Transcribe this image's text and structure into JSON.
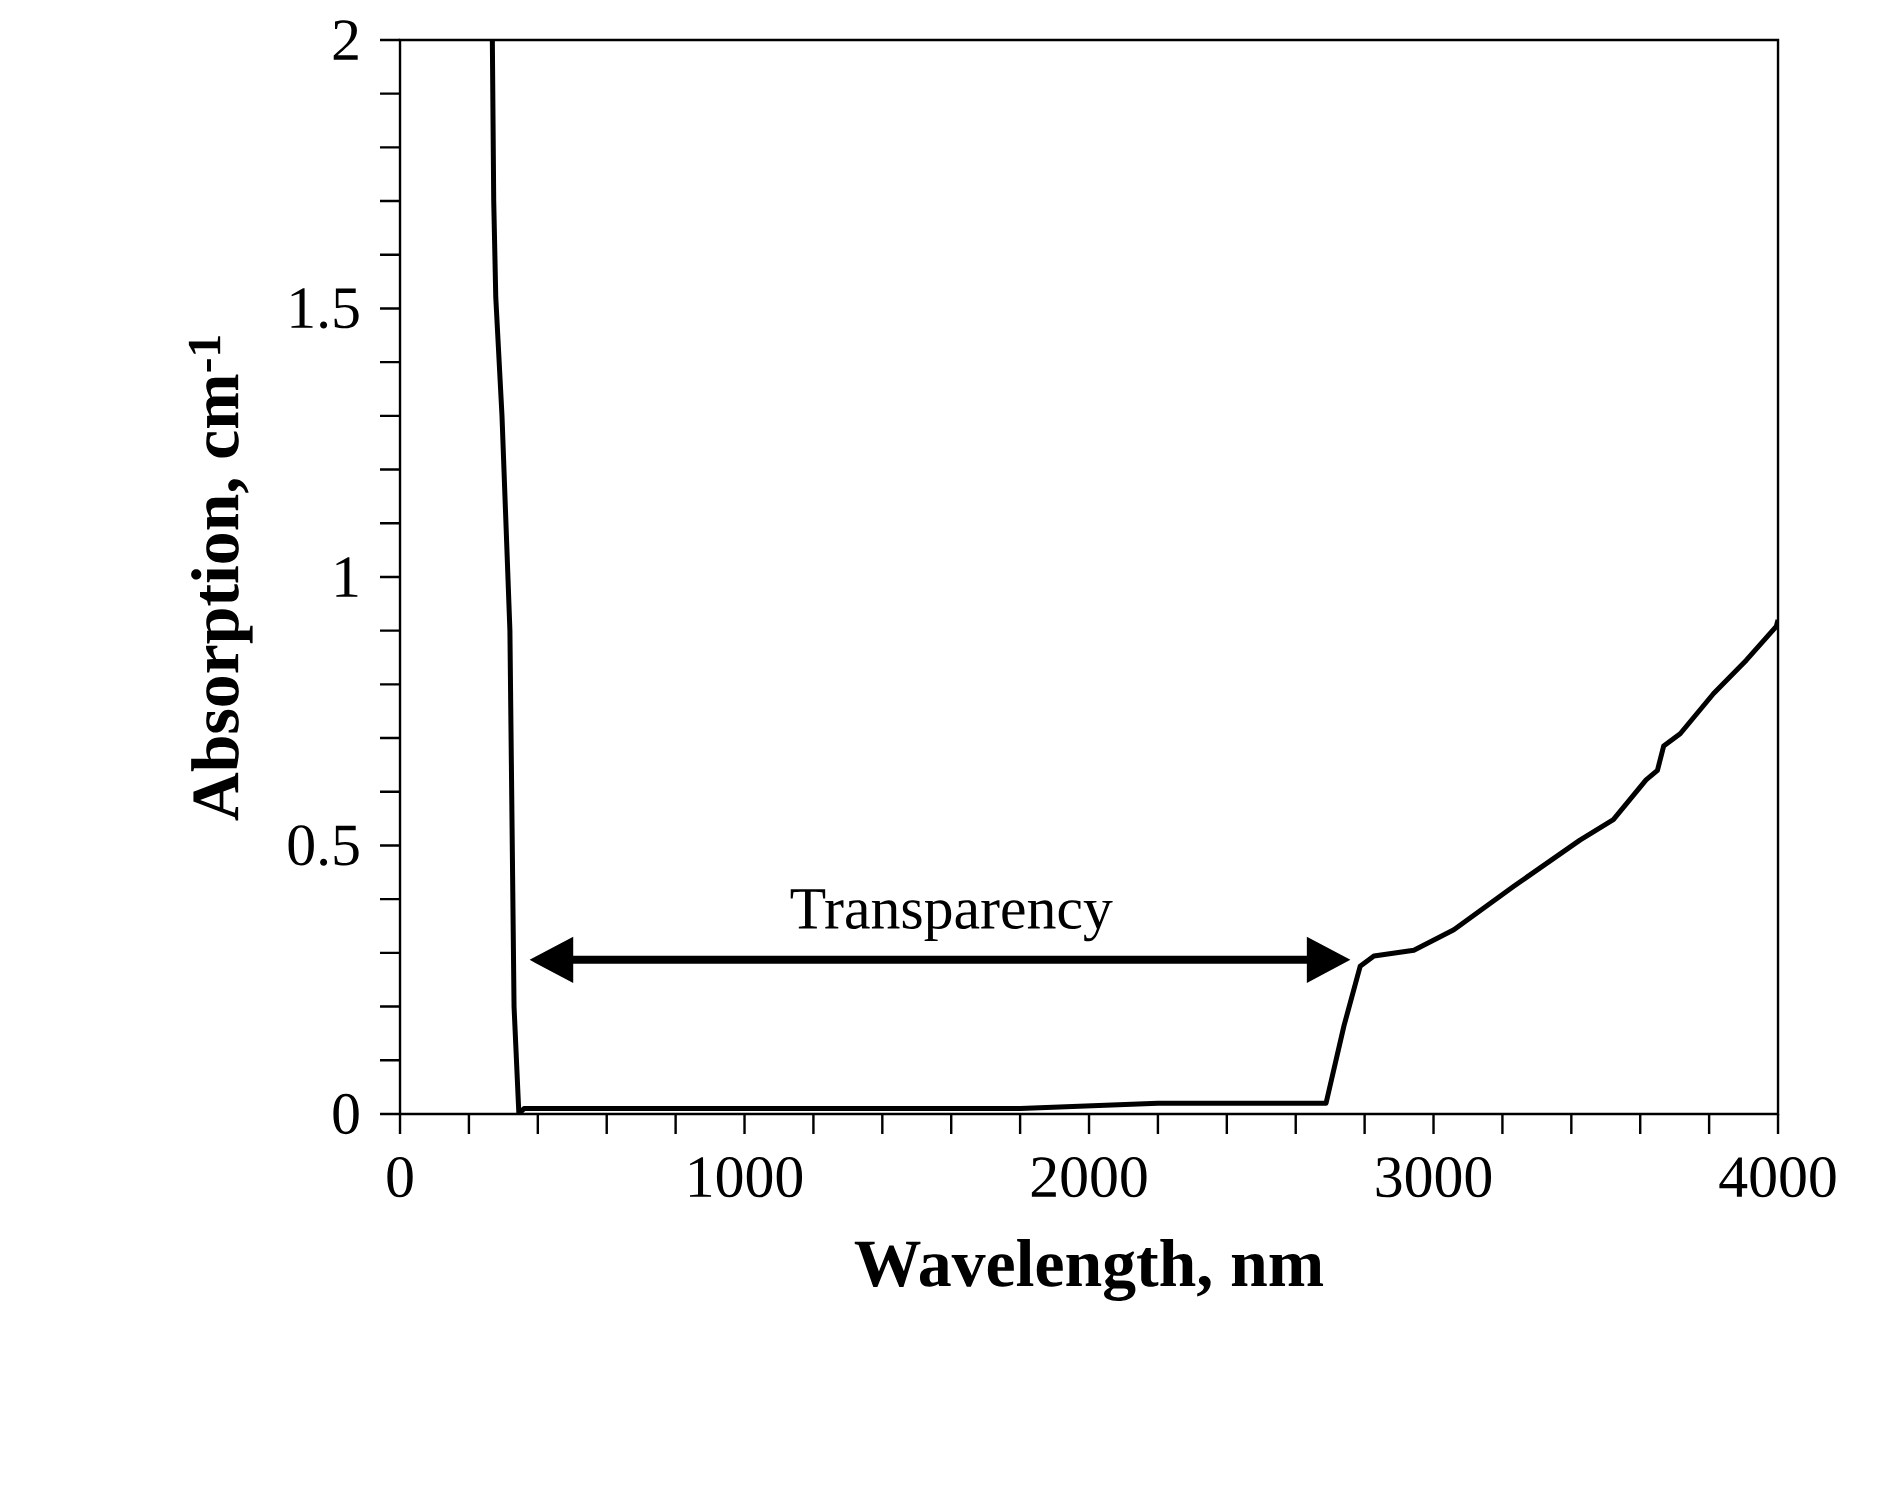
{
  "chart_data": {
    "type": "line",
    "xlabel": "Wavelength, nm",
    "ylabel": "Absorption, cm$^{-1}$",
    "annotations": [
      "Transparency"
    ],
    "series": [
      {
        "color": "#000000",
        "x": [
          268,
          272,
          278,
          296,
          319,
          331,
          345,
          360,
          600,
          1000,
          1400,
          1800,
          2200,
          2500,
          2650,
          2688,
          2740,
          2787,
          2827,
          2943,
          3059,
          3233,
          3425,
          3522,
          3617,
          3650,
          3668,
          3716,
          3813,
          3908,
          3995,
          4000
        ],
        "values": [
          2.0,
          1.7,
          1.52,
          1.3,
          0.9,
          0.2,
          0.0,
          0.01,
          0.01,
          0.01,
          0.01,
          0.01,
          0.02,
          0.02,
          0.02,
          0.02,
          0.164,
          0.275,
          0.294,
          0.305,
          0.343,
          0.424,
          0.51,
          0.548,
          0.622,
          0.64,
          0.685,
          0.708,
          0.783,
          0.845,
          0.908,
          0.92
        ]
      }
    ],
    "xlim": [
      0,
      4000
    ],
    "xticks": [
      0,
      {
        "value": 200,
        "label": null
      },
      {
        "value": 400,
        "label": null
      },
      {
        "value": 600,
        "label": null
      },
      {
        "value": 800,
        "label": null
      },
      1000,
      {
        "value": 1200,
        "label": null
      },
      {
        "value": 1400,
        "label": null
      },
      {
        "value": 1600,
        "label": null
      },
      {
        "value": 1800,
        "label": null
      },
      2000,
      {
        "value": 2200,
        "label": null
      },
      {
        "value": 2400,
        "label": null
      },
      {
        "value": 2600,
        "label": null
      },
      {
        "value": 2800,
        "label": null
      },
      3000,
      {
        "value": 3200,
        "label": null
      },
      {
        "value": 3400,
        "label": null
      },
      {
        "value": 3600,
        "label": null
      },
      {
        "value": 3800,
        "label": null
      },
      4000
    ],
    "ylim": [
      0,
      2
    ],
    "yticks": [
      0,
      {
        "value": 0.1,
        "label": null
      },
      {
        "value": 0.2,
        "label": null
      },
      {
        "value": 0.3,
        "label": null
      },
      {
        "value": 0.4,
        "label": null
      },
      0.5,
      {
        "value": 0.6,
        "label": null
      },
      {
        "value": 0.7,
        "label": null
      },
      {
        "value": 0.8,
        "label": null
      },
      {
        "value": 0.9,
        "label": null
      },
      1,
      {
        "value": 1.1,
        "label": null
      },
      {
        "value": 1.2,
        "label": null
      },
      {
        "value": 1.3,
        "label": null
      },
      {
        "value": 1.4,
        "label": null
      },
      1.5,
      {
        "value": 1.6,
        "label": null
      },
      {
        "value": 1.7,
        "label": null
      },
      {
        "value": 1.8,
        "label": null
      },
      {
        "value": 1.9,
        "label": null
      },
      2
    ],
    "grid": false,
    "marker": "none",
    "line_style": "solid"
  }
}
